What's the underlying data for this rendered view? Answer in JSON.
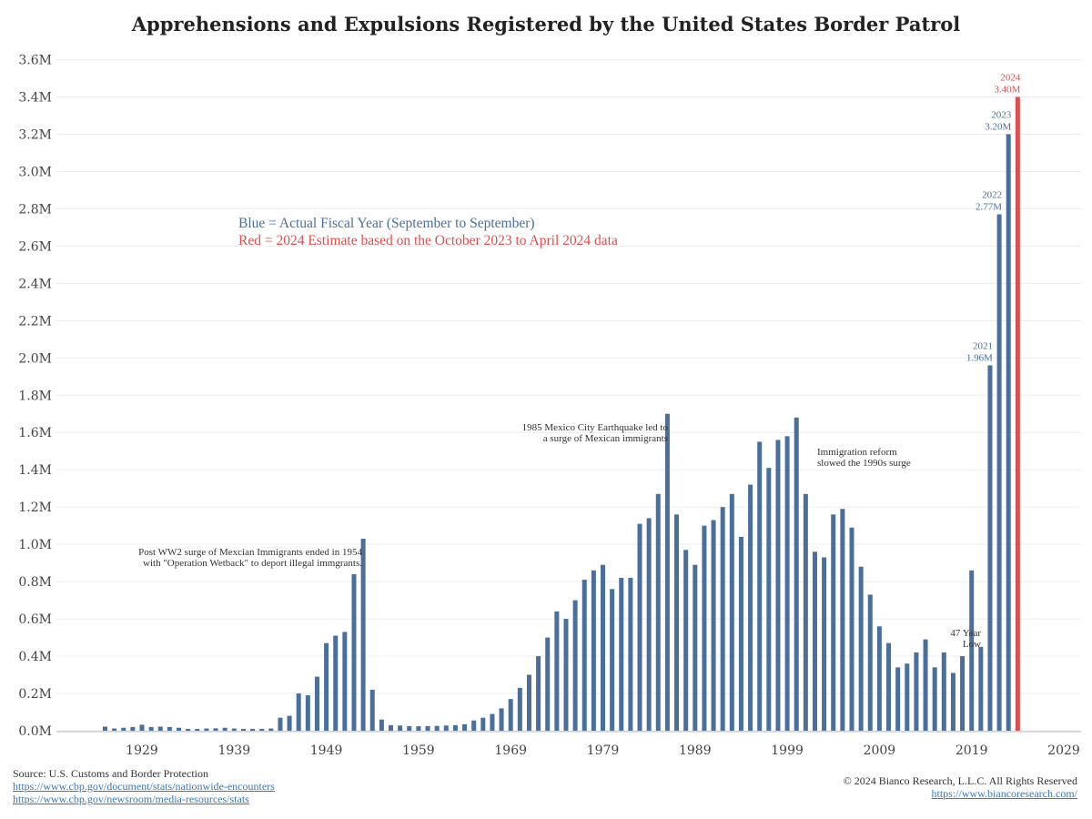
{
  "chart_data": {
    "type": "bar",
    "title": "Apprehensions and Expulsions Registered by the United States Border Patrol",
    "xlabel": "",
    "ylabel": "",
    "ylim": [
      0,
      3600000
    ],
    "xlim": [
      1915,
      2030
    ],
    "grid": true,
    "y_ticks": [
      {
        "value": 0,
        "label": "0.0M"
      },
      {
        "value": 200000,
        "label": "0.2M"
      },
      {
        "value": 400000,
        "label": "0.4M"
      },
      {
        "value": 600000,
        "label": "0.6M"
      },
      {
        "value": 800000,
        "label": "0.8M"
      },
      {
        "value": 1000000,
        "label": "1.0M"
      },
      {
        "value": 1200000,
        "label": "1.2M"
      },
      {
        "value": 1400000,
        "label": "1.4M"
      },
      {
        "value": 1600000,
        "label": "1.6M"
      },
      {
        "value": 1800000,
        "label": "1.8M"
      },
      {
        "value": 2000000,
        "label": "2.0M"
      },
      {
        "value": 2200000,
        "label": "2.2M"
      },
      {
        "value": 2400000,
        "label": "2.4M"
      },
      {
        "value": 2600000,
        "label": "2.6M"
      },
      {
        "value": 2800000,
        "label": "2.8M"
      },
      {
        "value": 3000000,
        "label": "3.0M"
      },
      {
        "value": 3200000,
        "label": "3.2M"
      },
      {
        "value": 3400000,
        "label": "3.4M"
      },
      {
        "value": 3600000,
        "label": "3.6M"
      }
    ],
    "x_ticks": [
      {
        "value": 1929,
        "label": "1929"
      },
      {
        "value": 1939,
        "label": "1939"
      },
      {
        "value": 1949,
        "label": "1949"
      },
      {
        "value": 1959,
        "label": "1959"
      },
      {
        "value": 1969,
        "label": "1969"
      },
      {
        "value": 1979,
        "label": "1979"
      },
      {
        "value": 1989,
        "label": "1989"
      },
      {
        "value": 1999,
        "label": "1999"
      },
      {
        "value": 2009,
        "label": "2009"
      },
      {
        "value": 2019,
        "label": "2019"
      },
      {
        "value": 2029,
        "label": "2029"
      }
    ],
    "series": [
      {
        "color": "#4a6f9c",
        "x": [
          1925,
          1926,
          1927,
          1928,
          1929,
          1930,
          1931,
          1932,
          1933,
          1934,
          1935,
          1936,
          1937,
          1938,
          1939,
          1940,
          1941,
          1942,
          1943,
          1944,
          1945,
          1946,
          1947,
          1948,
          1949,
          1950,
          1951,
          1952,
          1953,
          1954,
          1955,
          1956,
          1957,
          1958,
          1959,
          1960,
          1961,
          1962,
          1963,
          1964,
          1965,
          1966,
          1967,
          1968,
          1969,
          1970,
          1971,
          1972,
          1973,
          1974,
          1975,
          1976,
          1977,
          1978,
          1979,
          1980,
          1981,
          1982,
          1983,
          1984,
          1985,
          1986,
          1987,
          1988,
          1989,
          1990,
          1991,
          1992,
          1993,
          1994,
          1995,
          1996,
          1997,
          1998,
          1999,
          2000,
          2001,
          2002,
          2003,
          2004,
          2005,
          2006,
          2007,
          2008,
          2009,
          2010,
          2011,
          2012,
          2013,
          2014,
          2015,
          2016,
          2017,
          2018,
          2019,
          2020,
          2021,
          2022,
          2023
        ],
        "values": [
          22000,
          12000,
          16000,
          20000,
          32000,
          20000,
          22000,
          20000,
          16000,
          10000,
          10000,
          12000,
          13000,
          16000,
          12000,
          10000,
          10000,
          10000,
          12000,
          70000,
          80000,
          200000,
          190000,
          290000,
          470000,
          510000,
          530000,
          840000,
          1030000,
          220000,
          60000,
          30000,
          28000,
          25000,
          24000,
          25000,
          26000,
          28000,
          30000,
          35000,
          55000,
          70000,
          90000,
          120000,
          170000,
          230000,
          300000,
          400000,
          500000,
          640000,
          600000,
          700000,
          810000,
          860000,
          890000,
          760000,
          820000,
          820000,
          1110000,
          1140000,
          1270000,
          1700000,
          1160000,
          970000,
          890000,
          1100000,
          1130000,
          1200000,
          1270000,
          1040000,
          1320000,
          1550000,
          1410000,
          1560000,
          1580000,
          1680000,
          1270000,
          960000,
          930000,
          1160000,
          1190000,
          1090000,
          880000,
          730000,
          560000,
          470000,
          340000,
          360000,
          420000,
          490000,
          340000,
          420000,
          310000,
          400000,
          860000,
          450000,
          1960000,
          2770000,
          3200000
        ]
      },
      {
        "color": "#d9504f",
        "x": [
          2024
        ],
        "values": [
          3400000
        ]
      }
    ],
    "data_labels": [
      {
        "year": "2021",
        "value": "1.96M"
      },
      {
        "year": "2022",
        "value": "2.77M"
      },
      {
        "year": "2023",
        "value": "3.20M"
      },
      {
        "year": "2024",
        "value": "3.40M"
      }
    ],
    "legend": {
      "blue_text": "Blue = Actual Fiscal Year (September to September)",
      "red_text": "Red = 2024 Estimate based on the October 2023 to April 2024 data"
    },
    "annotations": [
      {
        "lines": [
          "Post WW2 surge of Mexcian Immigrants ended in 1954",
          "with \"Operation Wetback\" to deport illegal immgrants."
        ]
      },
      {
        "lines": [
          "1985 Mexico City Earthquake led to",
          "a  surge of Mexican immigrants"
        ]
      },
      {
        "lines": [
          "Immigration reform",
          "slowed the 1990s surge"
        ]
      },
      {
        "lines": [
          "47 Year",
          "Low"
        ]
      }
    ]
  },
  "footer": {
    "source": "Source: U.S. Customs and Border Protection",
    "link1": "https://www.cbp.gov/document/stats/nationwide-encounters",
    "link2": "https://www.cbp.gov/newsroom/media-resources/stats",
    "copyright": "© 2024 Bianco Research, L.L.C. All Rights Reserved",
    "site": "https://www.biancoresearch.com/"
  }
}
